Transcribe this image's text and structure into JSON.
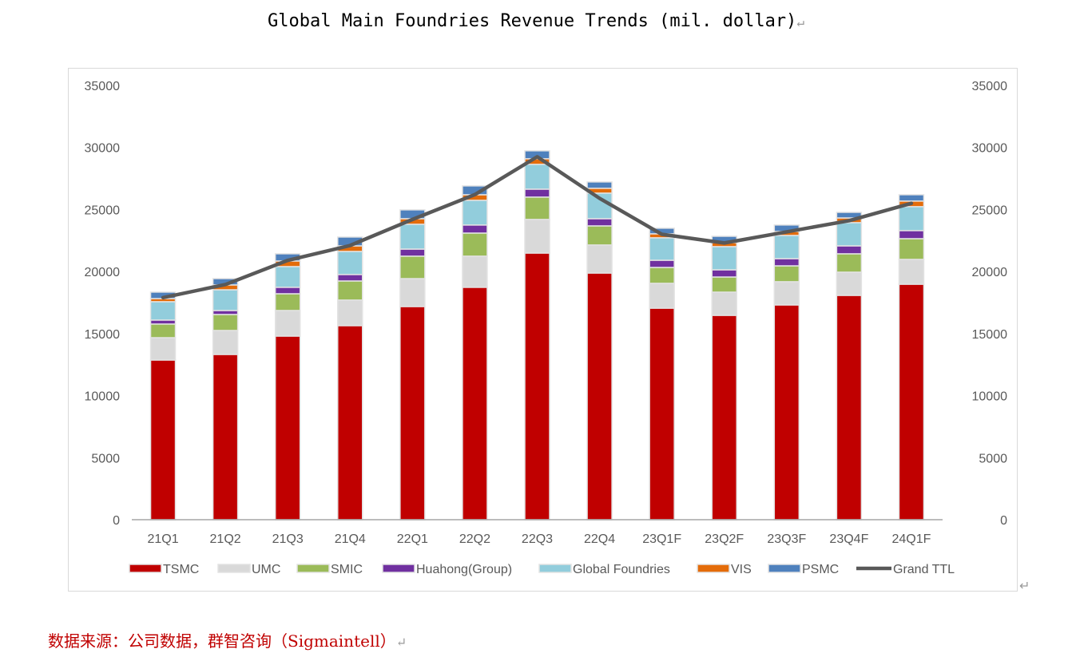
{
  "page": {
    "title": "Global Main Foundries Revenue Trends (mil. dollar)",
    "return_mark": "↵",
    "source_note": "数据来源：公司数据，群智咨询（Sigmaintell）"
  },
  "chart_data": {
    "type": "bar",
    "subtype": "stacked-bar-with-line",
    "title": "Global Main Foundries Revenue Trends (mil. dollar)",
    "xlabel": "",
    "ylabel": "",
    "ylim": [
      0,
      35000
    ],
    "y_ticks": [
      0,
      5000,
      10000,
      15000,
      20000,
      25000,
      30000,
      35000
    ],
    "y_tick_labels": [
      "0",
      "5000",
      "10000",
      "15000",
      "20000",
      "25000",
      "30000",
      "35000"
    ],
    "secondary_ylim": [
      0,
      35000
    ],
    "grid": false,
    "legend_position": "bottom",
    "categories": [
      "21Q1",
      "21Q2",
      "21Q3",
      "21Q4",
      "22Q1",
      "22Q2",
      "22Q3",
      "22Q4",
      "23Q1F",
      "23Q2F",
      "23Q3F",
      "23Q4F",
      "24Q1F"
    ],
    "series": [
      {
        "name": "TSMC",
        "type": "bar",
        "color": "#c00000",
        "values": [
          12870,
          13320,
          14800,
          15640,
          17180,
          18730,
          21490,
          19880,
          17050,
          16470,
          17310,
          18080,
          18980
        ]
      },
      {
        "name": "UMC",
        "type": "bar",
        "color": "#d9d9d9",
        "values": [
          1800,
          1930,
          2060,
          2060,
          2250,
          2510,
          2710,
          2260,
          2000,
          1870,
          1870,
          1870,
          2000
        ]
      },
      {
        "name": "SMIC",
        "type": "bar",
        "color": "#9bbb59",
        "values": [
          1100,
          1290,
          1350,
          1540,
          1810,
          1860,
          1800,
          1540,
          1280,
          1220,
          1280,
          1480,
          1670
        ]
      },
      {
        "name": "Huahong(Group)",
        "type": "bar",
        "color": "#7030a0",
        "values": [
          320,
          320,
          520,
          520,
          570,
          650,
          640,
          580,
          580,
          580,
          580,
          640,
          650
        ]
      },
      {
        "name": "Global Foundries",
        "type": "bar",
        "color": "#92cddc",
        "values": [
          1480,
          1670,
          1670,
          1860,
          2000,
          1990,
          2000,
          2060,
          1810,
          1870,
          1870,
          1870,
          1930
        ]
      },
      {
        "name": "VIS",
        "type": "bar",
        "color": "#e46c0a",
        "values": [
          250,
          390,
          450,
          450,
          450,
          450,
          450,
          390,
          320,
          320,
          320,
          380,
          450
        ]
      },
      {
        "name": "PSMC",
        "type": "bar",
        "color": "#4f81bd",
        "values": [
          520,
          510,
          580,
          710,
          710,
          710,
          640,
          510,
          450,
          510,
          520,
          450,
          510
        ]
      },
      {
        "name": "Grand TTL",
        "type": "line",
        "color": "#595959",
        "values": [
          17900,
          18950,
          20900,
          22100,
          24200,
          26200,
          29250,
          25900,
          23000,
          22300,
          23200,
          24100,
          25500
        ]
      }
    ]
  }
}
